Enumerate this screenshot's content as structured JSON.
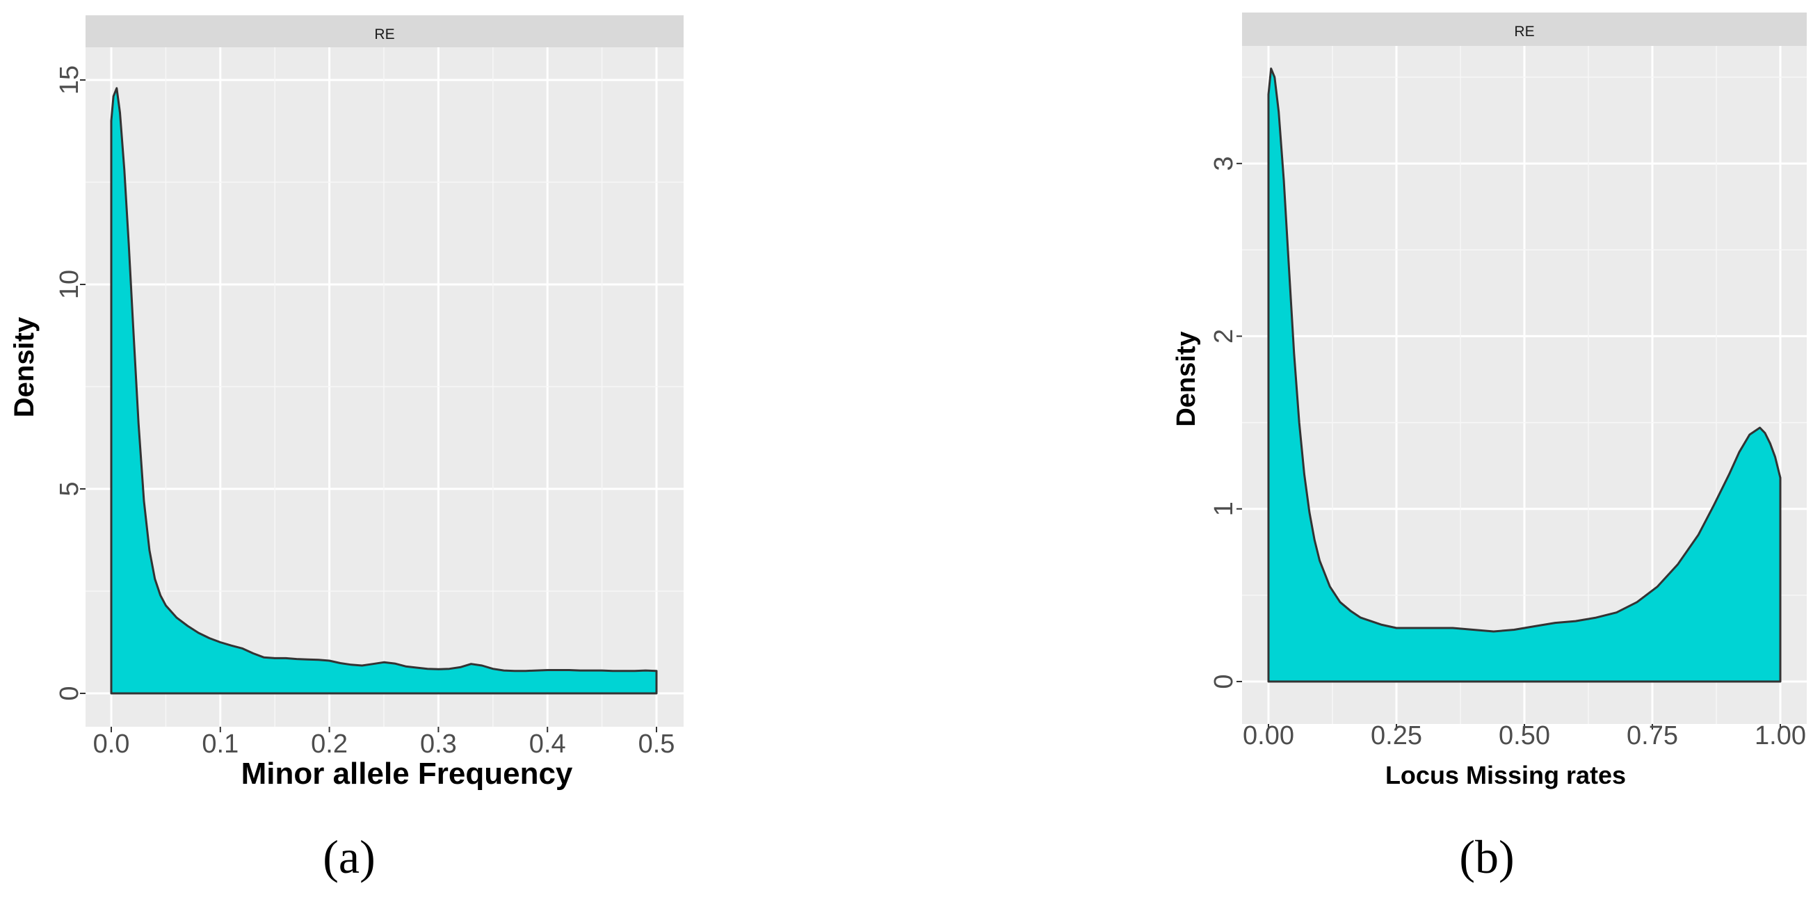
{
  "chart_data": [
    {
      "type": "area",
      "panel_caption": "(a)",
      "strip_label": "RE",
      "xlabel": "Minor allele Frequency",
      "ylabel": "Density",
      "xlim": [
        0.0,
        0.5
      ],
      "ylim": [
        0,
        15
      ],
      "x_ticks": [
        0.0,
        0.1,
        0.2,
        0.3,
        0.4,
        0.5
      ],
      "x_tick_labels": [
        "0.0",
        "0.1",
        "0.2",
        "0.3",
        "0.4",
        "0.5"
      ],
      "y_ticks": [
        0,
        5,
        10,
        15
      ],
      "y_tick_labels": [
        "0",
        "5",
        "10",
        "15"
      ],
      "grid": true,
      "fill_color": "#00d4d4",
      "line_color": "#333333",
      "x": [
        0.0,
        0.002,
        0.005,
        0.008,
        0.012,
        0.016,
        0.02,
        0.025,
        0.03,
        0.035,
        0.04,
        0.045,
        0.05,
        0.06,
        0.07,
        0.08,
        0.09,
        0.1,
        0.11,
        0.12,
        0.13,
        0.14,
        0.15,
        0.16,
        0.17,
        0.18,
        0.19,
        0.2,
        0.21,
        0.22,
        0.23,
        0.24,
        0.25,
        0.26,
        0.27,
        0.28,
        0.29,
        0.3,
        0.31,
        0.32,
        0.33,
        0.34,
        0.35,
        0.36,
        0.37,
        0.38,
        0.39,
        0.4,
        0.41,
        0.42,
        0.43,
        0.44,
        0.45,
        0.46,
        0.47,
        0.48,
        0.49,
        0.5
      ],
      "y": [
        14.0,
        14.6,
        14.8,
        14.2,
        12.8,
        11.0,
        9.0,
        6.6,
        4.7,
        3.5,
        2.8,
        2.4,
        2.15,
        1.85,
        1.65,
        1.48,
        1.35,
        1.25,
        1.17,
        1.1,
        0.98,
        0.88,
        0.86,
        0.86,
        0.84,
        0.83,
        0.82,
        0.8,
        0.74,
        0.7,
        0.68,
        0.72,
        0.76,
        0.73,
        0.66,
        0.63,
        0.6,
        0.59,
        0.6,
        0.64,
        0.72,
        0.68,
        0.6,
        0.56,
        0.55,
        0.55,
        0.56,
        0.57,
        0.57,
        0.57,
        0.56,
        0.56,
        0.56,
        0.55,
        0.55,
        0.55,
        0.56,
        0.55
      ]
    },
    {
      "type": "area",
      "panel_caption": "(b)",
      "strip_label": "RE",
      "xlabel": "Locus Missing rates",
      "ylabel": "Density",
      "xlim": [
        0.0,
        1.0
      ],
      "ylim": [
        0,
        3.5
      ],
      "x_ticks": [
        0.0,
        0.25,
        0.5,
        0.75,
        1.0
      ],
      "x_tick_labels": [
        "0.00",
        "0.25",
        "0.50",
        "0.75",
        "1.00"
      ],
      "y_ticks": [
        0,
        1,
        2,
        3
      ],
      "y_tick_labels": [
        "0",
        "1",
        "2",
        "3"
      ],
      "grid": true,
      "fill_color": "#00d4d4",
      "line_color": "#333333",
      "x": [
        0.0,
        0.005,
        0.012,
        0.02,
        0.03,
        0.04,
        0.05,
        0.06,
        0.07,
        0.08,
        0.09,
        0.1,
        0.12,
        0.14,
        0.16,
        0.18,
        0.2,
        0.22,
        0.25,
        0.28,
        0.3,
        0.33,
        0.36,
        0.4,
        0.44,
        0.48,
        0.52,
        0.56,
        0.6,
        0.64,
        0.68,
        0.72,
        0.76,
        0.8,
        0.84,
        0.87,
        0.9,
        0.92,
        0.94,
        0.96,
        0.97,
        0.98,
        0.99,
        1.0
      ],
      "y": [
        3.4,
        3.55,
        3.5,
        3.3,
        2.9,
        2.4,
        1.9,
        1.5,
        1.2,
        0.98,
        0.82,
        0.7,
        0.55,
        0.46,
        0.41,
        0.37,
        0.35,
        0.33,
        0.31,
        0.31,
        0.31,
        0.31,
        0.31,
        0.3,
        0.29,
        0.3,
        0.32,
        0.34,
        0.35,
        0.37,
        0.4,
        0.46,
        0.55,
        0.68,
        0.85,
        1.02,
        1.2,
        1.33,
        1.43,
        1.47,
        1.44,
        1.38,
        1.3,
        1.18
      ]
    }
  ]
}
